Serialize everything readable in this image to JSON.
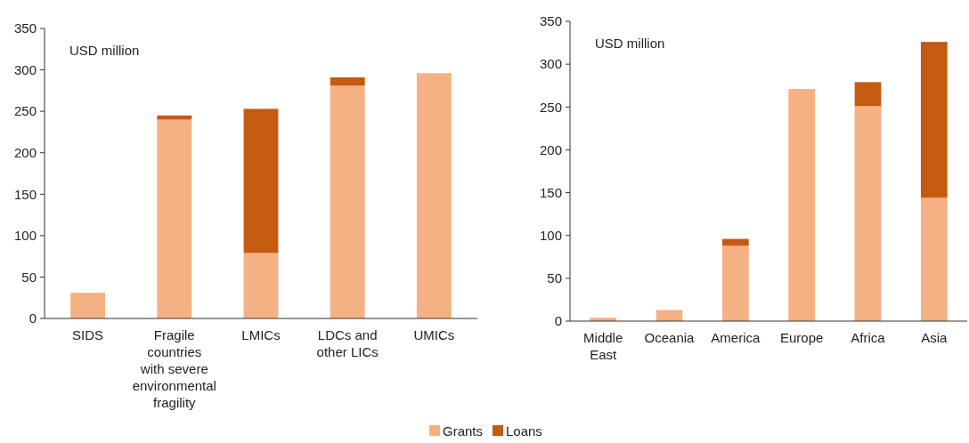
{
  "chart_data": [
    {
      "type": "bar",
      "stacked": true,
      "categories": [
        "SIDS",
        "Fragile countries with severe environmental fragility",
        "LMICs",
        "LDCs and other LICs",
        "UMICs"
      ],
      "series": [
        {
          "name": "Grants",
          "color": "#f4b183",
          "values": [
            31,
            240,
            79,
            281,
            296
          ]
        },
        {
          "name": "Loans",
          "color": "#c55a11",
          "values": [
            null,
            5,
            174,
            10,
            null
          ]
        }
      ],
      "ylim": [
        0,
        350
      ],
      "yticks": [
        0,
        50,
        100,
        150,
        200,
        250,
        300,
        350
      ],
      "annotations": [
        "USD million"
      ],
      "legend": "bottom"
    },
    {
      "type": "bar",
      "stacked": true,
      "categories": [
        "Middle East",
        "Oceania",
        "America",
        "Europe",
        "Africa",
        "Asia"
      ],
      "series": [
        {
          "color": "#f4b183",
          "values": [
            4,
            13,
            88,
            271,
            251,
            144
          ]
        },
        {
          "color": "#c55a11",
          "values": [
            null,
            null,
            8,
            null,
            28,
            182
          ]
        }
      ],
      "ylim": [
        0,
        350
      ],
      "yticks": [
        0,
        50,
        100,
        150,
        200,
        250,
        300,
        350
      ],
      "annotations": [
        "USD million"
      ]
    }
  ]
}
